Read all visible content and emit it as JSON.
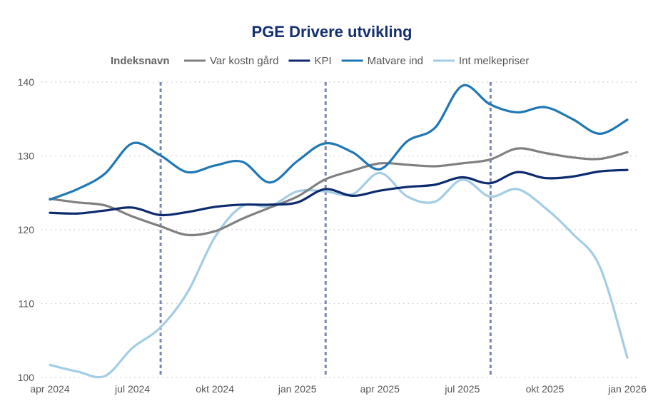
{
  "chart_data": {
    "type": "line",
    "title": "PGE Drivere utvikling",
    "legend_title": "Indeksnavn",
    "legend_position": "top",
    "x": [
      "2024-04",
      "2024-05",
      "2024-06",
      "2024-07",
      "2024-08",
      "2024-09",
      "2024-10",
      "2024-11",
      "2024-12",
      "2025-01",
      "2025-02",
      "2025-03",
      "2025-04",
      "2025-05",
      "2025-06",
      "2025-07",
      "2025-08",
      "2025-09",
      "2025-10",
      "2025-11",
      "2025-12",
      "2026-01"
    ],
    "xticks": [
      {
        "x": "2024-04",
        "label": "apr 2024"
      },
      {
        "x": "2024-07",
        "label": "jul 2024"
      },
      {
        "x": "2024-10",
        "label": "okt 2024"
      },
      {
        "x": "2025-01",
        "label": "jan 2025"
      },
      {
        "x": "2025-04",
        "label": "apr 2025"
      },
      {
        "x": "2025-07",
        "label": "jul 2025"
      },
      {
        "x": "2025-10",
        "label": "okt 2025"
      },
      {
        "x": "2026-01",
        "label": "jan 2026"
      }
    ],
    "ylim": [
      100,
      140
    ],
    "yticks": [
      100,
      110,
      120,
      130,
      140
    ],
    "grid": "horizontal dotted",
    "reference_lines_x": [
      "2024-08",
      "2025-02",
      "2025-08"
    ],
    "series": [
      {
        "name": "Var kostn gård",
        "color": "#808080",
        "values": [
          124.2,
          123.7,
          123.3,
          121.8,
          120.5,
          119.3,
          119.8,
          121.5,
          123.0,
          124.5,
          126.8,
          128.0,
          129.0,
          128.8,
          128.6,
          129.0,
          129.5,
          131.0,
          130.4,
          129.8,
          129.6,
          130.5
        ]
      },
      {
        "name": "KPI",
        "color": "#0c2a6d",
        "values": [
          122.3,
          122.2,
          122.6,
          123.0,
          122.0,
          122.4,
          123.1,
          123.4,
          123.4,
          123.7,
          125.5,
          124.6,
          125.3,
          125.8,
          126.1,
          127.1,
          126.3,
          127.8,
          127.0,
          127.2,
          127.9,
          128.1
        ]
      },
      {
        "name": "Matvare ind",
        "color": "#1f77b4",
        "values": [
          124.1,
          125.5,
          127.6,
          131.7,
          130.1,
          127.8,
          128.7,
          129.2,
          126.4,
          129.3,
          131.7,
          130.5,
          128.2,
          132.0,
          133.8,
          139.5,
          137.0,
          135.9,
          136.6,
          135.0,
          133.0,
          134.9
        ]
      },
      {
        "name": "Int melkepriser",
        "color": "#a3cde4",
        "values": [
          101.7,
          100.8,
          100.2,
          104.0,
          106.7,
          111.5,
          119.0,
          123.2,
          123.2,
          125.2,
          125.2,
          124.8,
          127.7,
          124.5,
          123.8,
          126.8,
          124.5,
          125.5,
          123.0,
          119.5,
          115.0,
          102.7
        ]
      }
    ]
  }
}
